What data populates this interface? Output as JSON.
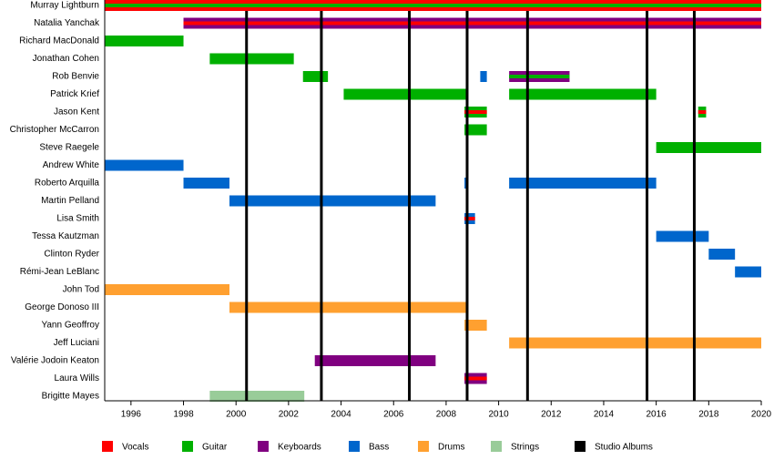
{
  "chart_data": {
    "type": "timeline",
    "xlim": [
      1995,
      2020
    ],
    "xticks": [
      1996,
      1998,
      2000,
      2002,
      2004,
      2006,
      2008,
      2010,
      2012,
      2014,
      2016,
      2018,
      2020
    ],
    "series": [
      {
        "name": "Vocals",
        "color": "#ff0000"
      },
      {
        "name": "Guitar",
        "color": "#00b000"
      },
      {
        "name": "Keyboards",
        "color": "#800080"
      },
      {
        "name": "Bass",
        "color": "#0066cc"
      },
      {
        "name": "Drums",
        "color": "#ffa030"
      },
      {
        "name": "Strings",
        "color": "#99cc99"
      }
    ],
    "album_lines": {
      "name": "Studio Albums",
      "color": "#000000",
      "values": [
        2000.4,
        2003.25,
        2006.6,
        2008.8,
        2011.1,
        2015.65,
        2017.45
      ]
    },
    "members": [
      {
        "name": "Murray Lightburn",
        "spans": [
          {
            "start": 1995,
            "end": 2020,
            "roles": [
              "Vocals",
              "Guitar"
            ]
          }
        ]
      },
      {
        "name": "Natalia Yanchak",
        "spans": [
          {
            "start": 1998,
            "end": 2020,
            "roles": [
              "Keyboards",
              "Vocals"
            ]
          }
        ]
      },
      {
        "name": "Richard MacDonald",
        "spans": [
          {
            "start": 1995,
            "end": 1998,
            "roles": [
              "Guitar"
            ]
          }
        ]
      },
      {
        "name": "Jonathan Cohen",
        "spans": [
          {
            "start": 1999,
            "end": 2002.2,
            "roles": [
              "Guitar"
            ]
          }
        ]
      },
      {
        "name": "Rob Benvie",
        "spans": [
          {
            "start": 2002.55,
            "end": 2003.5,
            "roles": [
              "Guitar"
            ]
          },
          {
            "start": 2009.3,
            "end": 2009.55,
            "roles": [
              "Bass"
            ]
          },
          {
            "start": 2010.4,
            "end": 2012.7,
            "roles": [
              "Keyboards",
              "Guitar"
            ]
          }
        ]
      },
      {
        "name": "Patrick Krief",
        "spans": [
          {
            "start": 2004.1,
            "end": 2008.8,
            "roles": [
              "Guitar"
            ]
          },
          {
            "start": 2010.4,
            "end": 2016,
            "roles": [
              "Guitar"
            ]
          }
        ]
      },
      {
        "name": "Jason Kent",
        "spans": [
          {
            "start": 2008.7,
            "end": 2009.55,
            "roles": [
              "Guitar",
              "Vocals"
            ]
          },
          {
            "start": 2017.6,
            "end": 2017.9,
            "roles": [
              "Guitar",
              "Vocals"
            ]
          }
        ]
      },
      {
        "name": "Christopher McCarron",
        "spans": [
          {
            "start": 2008.7,
            "end": 2009.55,
            "roles": [
              "Guitar"
            ]
          }
        ]
      },
      {
        "name": "Steve Raegele",
        "spans": [
          {
            "start": 2016,
            "end": 2020,
            "roles": [
              "Guitar"
            ]
          }
        ]
      },
      {
        "name": "Andrew White",
        "spans": [
          {
            "start": 1995,
            "end": 1998,
            "roles": [
              "Bass"
            ]
          }
        ]
      },
      {
        "name": "Roberto Arquilla",
        "spans": [
          {
            "start": 1998,
            "end": 1999.75,
            "roles": [
              "Bass"
            ]
          },
          {
            "start": 2008.7,
            "end": 2008.8,
            "roles": [
              "Bass"
            ]
          },
          {
            "start": 2010.4,
            "end": 2016,
            "roles": [
              "Bass"
            ]
          }
        ]
      },
      {
        "name": "Martin Pelland",
        "spans": [
          {
            "start": 1999.75,
            "end": 2007.6,
            "roles": [
              "Bass"
            ]
          }
        ]
      },
      {
        "name": "Lisa Smith",
        "spans": [
          {
            "start": 2008.7,
            "end": 2009.1,
            "roles": [
              "Bass",
              "Vocals"
            ]
          }
        ]
      },
      {
        "name": "Tessa Kautzman",
        "spans": [
          {
            "start": 2016,
            "end": 2018,
            "roles": [
              "Bass"
            ]
          }
        ]
      },
      {
        "name": "Clinton Ryder",
        "spans": [
          {
            "start": 2018,
            "end": 2019,
            "roles": [
              "Bass"
            ]
          }
        ]
      },
      {
        "name": "Rémi-Jean LeBlanc",
        "spans": [
          {
            "start": 2019,
            "end": 2020,
            "roles": [
              "Bass"
            ]
          }
        ]
      },
      {
        "name": "John Tod",
        "spans": [
          {
            "start": 1995,
            "end": 1999.75,
            "roles": [
              "Drums"
            ]
          }
        ]
      },
      {
        "name": "George Donoso III",
        "spans": [
          {
            "start": 1999.75,
            "end": 2008.8,
            "roles": [
              "Drums"
            ]
          }
        ]
      },
      {
        "name": "Yann Geoffroy",
        "spans": [
          {
            "start": 2008.7,
            "end": 2009.55,
            "roles": [
              "Drums"
            ]
          }
        ]
      },
      {
        "name": "Jeff Luciani",
        "spans": [
          {
            "start": 2010.4,
            "end": 2020,
            "roles": [
              "Drums"
            ]
          }
        ]
      },
      {
        "name": "Valérie Jodoin Keaton",
        "spans": [
          {
            "start": 2003,
            "end": 2007.6,
            "roles": [
              "Keyboards"
            ]
          }
        ]
      },
      {
        "name": "Laura Wills",
        "spans": [
          {
            "start": 2008.7,
            "end": 2009.55,
            "roles": [
              "Keyboards",
              "Vocals"
            ]
          }
        ]
      },
      {
        "name": "Brigitte Mayes",
        "spans": [
          {
            "start": 1999,
            "end": 2002.6,
            "roles": [
              "Strings"
            ]
          }
        ]
      }
    ]
  }
}
